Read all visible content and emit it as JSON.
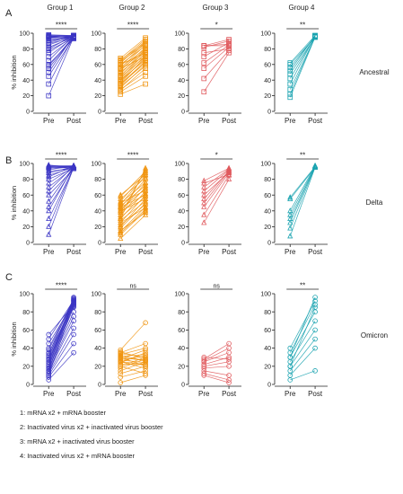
{
  "row_labels": [
    "A",
    "B",
    "C"
  ],
  "variants": [
    "Ancestral",
    "Delta",
    "Omicron"
  ],
  "group_titles": [
    "Group 1",
    "Group 2",
    "Group 3",
    "Group 4"
  ],
  "group_colors": [
    "#3b35c4",
    "#f0940f",
    "#e05a5e",
    "#1aa3b0"
  ],
  "legend": [
    "1: mRNA x2 + mRNA booster",
    "2: Inactivated virus x2 + inactivated virus booster",
    "3: mRNA x2 + inactivated virus booster",
    "4: Inactivated virus x2 + mRNA booster"
  ],
  "chart_data": [
    {
      "type": "scatter",
      "row": "A",
      "variant": "Ancestral",
      "group": "Group 1",
      "marker": "square",
      "ylabel": "% inhibition",
      "categories": [
        "Pre",
        "Post"
      ],
      "ylim": [
        0,
        100
      ],
      "yticks": [
        0,
        20,
        40,
        60,
        80,
        100
      ],
      "significance": "****",
      "pairs": [
        [
          20,
          95
        ],
        [
          35,
          96
        ],
        [
          45,
          94
        ],
        [
          50,
          97
        ],
        [
          55,
          95
        ],
        [
          58,
          96
        ],
        [
          60,
          93
        ],
        [
          65,
          97
        ],
        [
          70,
          95
        ],
        [
          75,
          96
        ],
        [
          78,
          94
        ],
        [
          80,
          97
        ],
        [
          82,
          95
        ],
        [
          85,
          96
        ],
        [
          87,
          94
        ],
        [
          88,
          97
        ],
        [
          90,
          95
        ],
        [
          91,
          96
        ],
        [
          93,
          94
        ],
        [
          94,
          97
        ],
        [
          95,
          95
        ],
        [
          96,
          96
        ],
        [
          97,
          94
        ],
        [
          98,
          97
        ],
        [
          96,
          95
        ],
        [
          95,
          96
        ],
        [
          97,
          97
        ]
      ]
    },
    {
      "type": "scatter",
      "row": "A",
      "variant": "Ancestral",
      "group": "Group 2",
      "marker": "square",
      "ylabel": "",
      "categories": [
        "Pre",
        "Post"
      ],
      "ylim": [
        0,
        100
      ],
      "yticks": [
        0,
        20,
        40,
        60,
        80,
        100
      ],
      "significance": "****",
      "pairs": [
        [
          22,
          35
        ],
        [
          25,
          45
        ],
        [
          27,
          55
        ],
        [
          28,
          50
        ],
        [
          30,
          60
        ],
        [
          32,
          58
        ],
        [
          33,
          65
        ],
        [
          35,
          62
        ],
        [
          36,
          70
        ],
        [
          38,
          68
        ],
        [
          40,
          72
        ],
        [
          42,
          75
        ],
        [
          44,
          70
        ],
        [
          45,
          78
        ],
        [
          46,
          74
        ],
        [
          48,
          80
        ],
        [
          50,
          76
        ],
        [
          52,
          82
        ],
        [
          54,
          78
        ],
        [
          55,
          85
        ],
        [
          56,
          80
        ],
        [
          58,
          88
        ],
        [
          60,
          84
        ],
        [
          62,
          90
        ],
        [
          64,
          86
        ],
        [
          65,
          92
        ],
        [
          66,
          88
        ],
        [
          68,
          94
        ],
        [
          60,
          75
        ],
        [
          55,
          70
        ],
        [
          40,
          66
        ],
        [
          35,
          64
        ]
      ]
    },
    {
      "type": "scatter",
      "row": "A",
      "variant": "Ancestral",
      "group": "Group 3",
      "marker": "square",
      "ylabel": "",
      "categories": [
        "Pre",
        "Post"
      ],
      "ylim": [
        0,
        100
      ],
      "yticks": [
        0,
        20,
        40,
        60,
        80,
        100
      ],
      "significance": "*",
      "pairs": [
        [
          25,
          75
        ],
        [
          42,
          78
        ],
        [
          55,
          82
        ],
        [
          62,
          85
        ],
        [
          70,
          88
        ],
        [
          75,
          80
        ],
        [
          82,
          90
        ],
        [
          84,
          84
        ],
        [
          84,
          92
        ],
        [
          84,
          86
        ]
      ]
    },
    {
      "type": "scatter",
      "row": "A",
      "variant": "Ancestral",
      "group": "Group 4",
      "marker": "square",
      "ylabel": "",
      "categories": [
        "Pre",
        "Post"
      ],
      "ylim": [
        0,
        100
      ],
      "yticks": [
        0,
        20,
        40,
        60,
        80,
        100
      ],
      "significance": "**",
      "pairs": [
        [
          18,
          95
        ],
        [
          22,
          96
        ],
        [
          28,
          95
        ],
        [
          35,
          97
        ],
        [
          42,
          96
        ],
        [
          48,
          95
        ],
        [
          52,
          97
        ],
        [
          56,
          96
        ],
        [
          60,
          95
        ],
        [
          62,
          97
        ]
      ]
    },
    {
      "type": "scatter",
      "row": "B",
      "variant": "Delta",
      "group": "Group 1",
      "marker": "triangle",
      "ylabel": "% inhibition",
      "categories": [
        "Pre",
        "Post"
      ],
      "ylim": [
        0,
        100
      ],
      "yticks": [
        0,
        20,
        40,
        60,
        80,
        100
      ],
      "significance": "****",
      "pairs": [
        [
          10,
          95
        ],
        [
          20,
          96
        ],
        [
          30,
          94
        ],
        [
          40,
          97
        ],
        [
          45,
          95
        ],
        [
          52,
          96
        ],
        [
          60,
          93
        ],
        [
          65,
          97
        ],
        [
          70,
          95
        ],
        [
          75,
          96
        ],
        [
          80,
          94
        ],
        [
          83,
          97
        ],
        [
          85,
          95
        ],
        [
          88,
          96
        ],
        [
          90,
          94
        ],
        [
          92,
          97
        ],
        [
          94,
          95
        ],
        [
          95,
          96
        ],
        [
          96,
          94
        ],
        [
          97,
          97
        ],
        [
          98,
          95
        ],
        [
          96,
          96
        ],
        [
          95,
          97
        ]
      ]
    },
    {
      "type": "scatter",
      "row": "B",
      "variant": "Delta",
      "group": "Group 2",
      "marker": "triangle",
      "ylabel": "",
      "categories": [
        "Pre",
        "Post"
      ],
      "ylim": [
        0,
        100
      ],
      "yticks": [
        0,
        20,
        40,
        60,
        80,
        100
      ],
      "significance": "****",
      "pairs": [
        [
          5,
          35
        ],
        [
          10,
          40
        ],
        [
          14,
          45
        ],
        [
          18,
          50
        ],
        [
          20,
          55
        ],
        [
          22,
          48
        ],
        [
          25,
          60
        ],
        [
          28,
          52
        ],
        [
          30,
          65
        ],
        [
          32,
          58
        ],
        [
          35,
          70
        ],
        [
          38,
          62
        ],
        [
          40,
          75
        ],
        [
          42,
          68
        ],
        [
          44,
          80
        ],
        [
          46,
          72
        ],
        [
          48,
          85
        ],
        [
          50,
          76
        ],
        [
          52,
          88
        ],
        [
          55,
          82
        ],
        [
          58,
          90
        ],
        [
          60,
          86
        ],
        [
          35,
          92
        ],
        [
          30,
          94
        ],
        [
          25,
          44
        ],
        [
          40,
          55
        ],
        [
          45,
          60
        ],
        [
          50,
          66
        ],
        [
          15,
          38
        ],
        [
          12,
          42
        ]
      ]
    },
    {
      "type": "scatter",
      "row": "B",
      "variant": "Delta",
      "group": "Group 3",
      "marker": "triangle",
      "ylabel": "",
      "categories": [
        "Pre",
        "Post"
      ],
      "ylim": [
        0,
        100
      ],
      "yticks": [
        0,
        20,
        40,
        60,
        80,
        100
      ],
      "significance": "*",
      "pairs": [
        [
          25,
          80
        ],
        [
          35,
          85
        ],
        [
          45,
          88
        ],
        [
          50,
          90
        ],
        [
          65,
          92
        ],
        [
          75,
          86
        ],
        [
          78,
          94
        ],
        [
          60,
          89
        ],
        [
          55,
          91
        ],
        [
          70,
          93
        ]
      ]
    },
    {
      "type": "scatter",
      "row": "B",
      "variant": "Delta",
      "group": "Group 4",
      "marker": "triangle",
      "ylabel": "",
      "categories": [
        "Pre",
        "Post"
      ],
      "ylim": [
        0,
        100
      ],
      "yticks": [
        0,
        20,
        40,
        60,
        80,
        100
      ],
      "significance": "**",
      "pairs": [
        [
          8,
          95
        ],
        [
          18,
          96
        ],
        [
          25,
          97
        ],
        [
          30,
          95
        ],
        [
          35,
          96
        ],
        [
          40,
          97
        ],
        [
          55,
          95
        ],
        [
          57,
          96
        ]
      ]
    },
    {
      "type": "scatter",
      "row": "C",
      "variant": "Omicron",
      "group": "Group 1",
      "marker": "circle",
      "ylabel": "% inhibition",
      "categories": [
        "Pre",
        "Post"
      ],
      "ylim": [
        0,
        100
      ],
      "yticks": [
        0,
        20,
        40,
        60,
        80,
        100
      ],
      "significance": "****",
      "pairs": [
        [
          5,
          35
        ],
        [
          8,
          45
        ],
        [
          10,
          55
        ],
        [
          12,
          62
        ],
        [
          14,
          70
        ],
        [
          15,
          75
        ],
        [
          17,
          80
        ],
        [
          18,
          85
        ],
        [
          20,
          88
        ],
        [
          22,
          90
        ],
        [
          24,
          92
        ],
        [
          25,
          94
        ],
        [
          27,
          86
        ],
        [
          28,
          91
        ],
        [
          30,
          93
        ],
        [
          32,
          89
        ],
        [
          34,
          95
        ],
        [
          35,
          87
        ],
        [
          38,
          92
        ],
        [
          40,
          94
        ],
        [
          45,
          90
        ],
        [
          50,
          93
        ],
        [
          55,
          88
        ],
        [
          20,
          96
        ],
        [
          15,
          92
        ],
        [
          10,
          89
        ]
      ]
    },
    {
      "type": "scatter",
      "row": "C",
      "variant": "Omicron",
      "group": "Group 2",
      "marker": "circle",
      "ylabel": "",
      "categories": [
        "Pre",
        "Post"
      ],
      "ylim": [
        0,
        100
      ],
      "yticks": [
        0,
        20,
        40,
        60,
        80,
        100
      ],
      "significance": "ns",
      "pairs": [
        [
          2,
          10
        ],
        [
          8,
          15
        ],
        [
          12,
          20
        ],
        [
          15,
          25
        ],
        [
          18,
          28
        ],
        [
          20,
          30
        ],
        [
          22,
          22
        ],
        [
          24,
          35
        ],
        [
          25,
          18
        ],
        [
          26,
          32
        ],
        [
          27,
          24
        ],
        [
          28,
          38
        ],
        [
          29,
          27
        ],
        [
          30,
          20
        ],
        [
          31,
          33
        ],
        [
          32,
          26
        ],
        [
          33,
          40
        ],
        [
          34,
          30
        ],
        [
          35,
          45
        ],
        [
          36,
          28
        ],
        [
          38,
          68
        ],
        [
          25,
          22
        ],
        [
          20,
          12
        ],
        [
          30,
          26
        ]
      ]
    },
    {
      "type": "scatter",
      "row": "C",
      "variant": "Omicron",
      "group": "Group 3",
      "marker": "circle",
      "ylabel": "",
      "categories": [
        "Pre",
        "Post"
      ],
      "ylim": [
        0,
        100
      ],
      "yticks": [
        0,
        20,
        40,
        60,
        80,
        100
      ],
      "significance": "ns",
      "pairs": [
        [
          10,
          2
        ],
        [
          12,
          5
        ],
        [
          15,
          10
        ],
        [
          18,
          20
        ],
        [
          20,
          25
        ],
        [
          22,
          30
        ],
        [
          25,
          35
        ],
        [
          26,
          40
        ],
        [
          28,
          45
        ],
        [
          30,
          28
        ]
      ]
    },
    {
      "type": "scatter",
      "row": "C",
      "variant": "Omicron",
      "group": "Group 4",
      "marker": "circle",
      "ylabel": "",
      "categories": [
        "Pre",
        "Post"
      ],
      "ylim": [
        0,
        100
      ],
      "yticks": [
        0,
        20,
        40,
        60,
        80,
        100
      ],
      "significance": "**",
      "pairs": [
        [
          5,
          15
        ],
        [
          10,
          40
        ],
        [
          15,
          50
        ],
        [
          20,
          60
        ],
        [
          25,
          70
        ],
        [
          30,
          80
        ],
        [
          35,
          88
        ],
        [
          40,
          92
        ],
        [
          30,
          96
        ],
        [
          20,
          85
        ]
      ]
    }
  ]
}
